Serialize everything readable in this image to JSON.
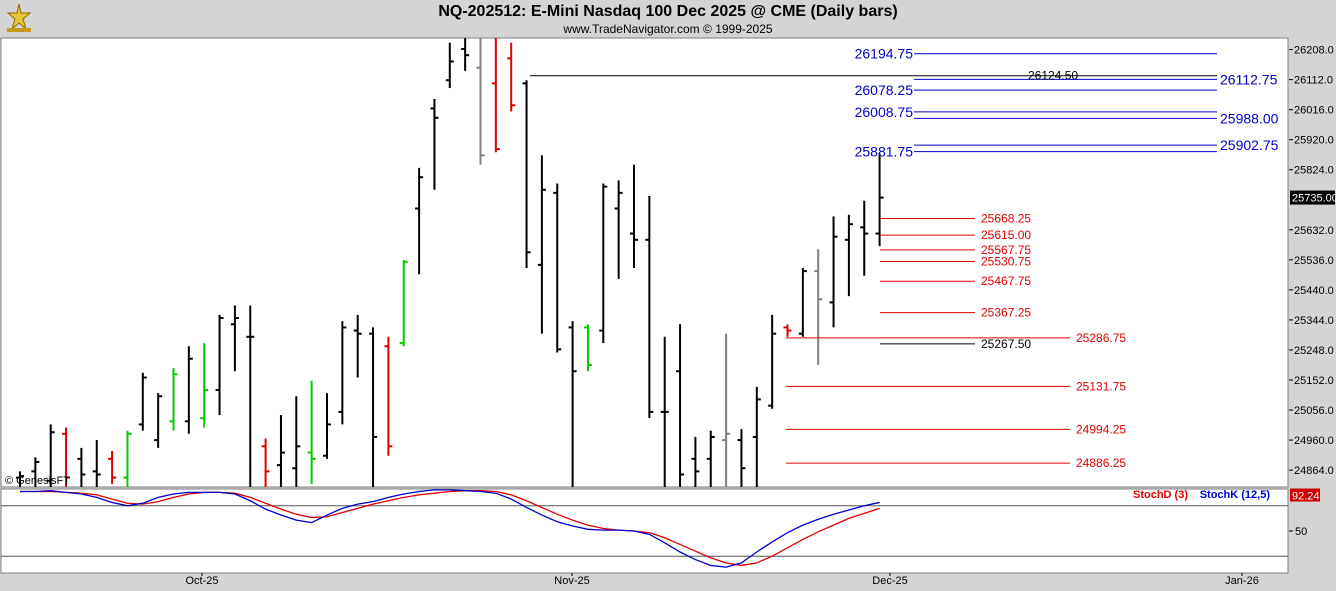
{
  "header": {
    "title": "NQ-202512:  E-Mini Nasdaq 100 Dec 2025 @ CME  (Daily bars)",
    "subtitle": "www.TradeNavigator.com © 1999-2025"
  },
  "colors": {
    "bar_up": "#000000",
    "bar_down_red": "#e00000",
    "bar_gray": "#808080",
    "bar_green": "#00cc00",
    "blue_levels": "#0000cc",
    "red_levels": "#e00000",
    "stoch_d": "#e00000",
    "stoch_k": "#0000cc"
  },
  "chart_data": [
    {
      "type": "candlestick",
      "title": "NQ-202512:  E-Mini Nasdaq 100 Dec 2025 @ CME  (Daily bars)",
      "y_ticks": [
        "26208.0",
        "26112.0",
        "26016.0",
        "25920.0",
        "25824.0",
        "25632.0",
        "25536.0",
        "25440.0",
        "25344.0",
        "25248.0",
        "25152.0",
        "25056.0",
        "24960.0",
        "24864.0"
      ],
      "last_price": "25735.00",
      "ylim": [
        24810,
        26245
      ],
      "x_ticks": [
        "Oct-25",
        "Nov-25",
        "Dec-25",
        "Jan-26"
      ],
      "series_note": "OHLC daily bars, values estimated from y-axis",
      "bars": [
        {
          "h": 24860,
          "l": 24810,
          "o": 24840,
          "c": 24845,
          "col": "k"
        },
        {
          "h": 24905,
          "l": 24810,
          "o": 24860,
          "c": 24890,
          "col": "k"
        },
        {
          "h": 25010,
          "l": 24810,
          "o": 24830,
          "c": 24985,
          "col": "k"
        },
        {
          "h": 25000,
          "l": 24810,
          "o": 24980,
          "c": 24840,
          "col": "r"
        },
        {
          "h": 24935,
          "l": 24810,
          "o": 24900,
          "c": 24850,
          "col": "k"
        },
        {
          "h": 24960,
          "l": 24810,
          "o": 24860,
          "c": 24850,
          "col": "k"
        },
        {
          "h": 24925,
          "l": 24820,
          "o": 24900,
          "c": 24840,
          "col": "r"
        },
        {
          "h": 24990,
          "l": 24810,
          "o": 24840,
          "c": 24980,
          "col": "g"
        },
        {
          "h": 25175,
          "l": 24990,
          "o": 25010,
          "c": 25160,
          "col": "k"
        },
        {
          "h": 25110,
          "l": 24935,
          "o": 24960,
          "c": 25100,
          "col": "k"
        },
        {
          "h": 25190,
          "l": 24990,
          "o": 25020,
          "c": 25170,
          "col": "g"
        },
        {
          "h": 25260,
          "l": 24980,
          "o": 25020,
          "c": 25220,
          "col": "k"
        },
        {
          "h": 25270,
          "l": 25000,
          "o": 25030,
          "c": 25120,
          "col": "g"
        },
        {
          "h": 25360,
          "l": 25040,
          "o": 25120,
          "c": 25350,
          "col": "k"
        },
        {
          "h": 25390,
          "l": 25180,
          "o": 25330,
          "c": 25350,
          "col": "k"
        },
        {
          "h": 25390,
          "l": 24810,
          "o": 25290,
          "c": 25290,
          "col": "k"
        },
        {
          "h": 24965,
          "l": 24810,
          "o": 24940,
          "c": 24860,
          "col": "r"
        },
        {
          "h": 25040,
          "l": 24810,
          "o": 24880,
          "c": 24920,
          "col": "k"
        },
        {
          "h": 25100,
          "l": 24810,
          "o": 24870,
          "c": 24940,
          "col": "k"
        },
        {
          "h": 25150,
          "l": 24820,
          "o": 24920,
          "c": 24900,
          "col": "g"
        },
        {
          "h": 25110,
          "l": 24900,
          "o": 24910,
          "c": 25010,
          "col": "k"
        },
        {
          "h": 25340,
          "l": 25010,
          "o": 25050,
          "c": 25320,
          "col": "k"
        },
        {
          "h": 25360,
          "l": 25160,
          "o": 25310,
          "c": 25300,
          "col": "k"
        },
        {
          "h": 25320,
          "l": 24810,
          "o": 25300,
          "c": 24970,
          "col": "k"
        },
        {
          "h": 25290,
          "l": 24910,
          "o": 25260,
          "c": 24940,
          "col": "r"
        },
        {
          "h": 25535,
          "l": 25260,
          "o": 25270,
          "c": 25530,
          "col": "g"
        },
        {
          "h": 25830,
          "l": 25490,
          "o": 25700,
          "c": 25800,
          "col": "k"
        },
        {
          "h": 26050,
          "l": 25760,
          "o": 26020,
          "c": 25990,
          "col": "k"
        },
        {
          "h": 26230,
          "l": 26085,
          "o": 26110,
          "c": 26170,
          "col": "k"
        },
        {
          "h": 26245,
          "l": 26140,
          "o": 26210,
          "c": 26190,
          "col": "k"
        },
        {
          "h": 26245,
          "l": 25840,
          "o": 26150,
          "c": 25870,
          "col": "gy"
        },
        {
          "h": 26245,
          "l": 25880,
          "o": 26100,
          "c": 25890,
          "col": "r"
        },
        {
          "h": 26230,
          "l": 26010,
          "o": 26180,
          "c": 26030,
          "col": "r"
        },
        {
          "h": 26110,
          "l": 25510,
          "o": 26100,
          "c": 25560,
          "col": "k"
        },
        {
          "h": 25870,
          "l": 25300,
          "o": 25520,
          "c": 25760,
          "col": "k"
        },
        {
          "h": 25780,
          "l": 25240,
          "o": 25750,
          "c": 25250,
          "col": "k"
        },
        {
          "h": 25340,
          "l": 24810,
          "o": 25320,
          "c": 25180,
          "col": "k"
        },
        {
          "h": 25330,
          "l": 25180,
          "o": 25320,
          "c": 25200,
          "col": "g"
        },
        {
          "h": 25780,
          "l": 25270,
          "o": 25310,
          "c": 25770,
          "col": "k"
        },
        {
          "h": 25790,
          "l": 25475,
          "o": 25700,
          "c": 25750,
          "col": "k"
        },
        {
          "h": 25840,
          "l": 25510,
          "o": 25620,
          "c": 25600,
          "col": "k"
        },
        {
          "h": 25740,
          "l": 25030,
          "o": 25600,
          "c": 25050,
          "col": "k"
        },
        {
          "h": 25290,
          "l": 24810,
          "o": 25050,
          "c": 25050,
          "col": "k"
        },
        {
          "h": 25330,
          "l": 24810,
          "o": 25180,
          "c": 24850,
          "col": "k"
        },
        {
          "h": 24970,
          "l": 24810,
          "o": 24900,
          "c": 24860,
          "col": "k"
        },
        {
          "h": 24990,
          "l": 24810,
          "o": 24900,
          "c": 24970,
          "col": "k"
        },
        {
          "h": 25300,
          "l": 24810,
          "o": 24960,
          "c": 24980,
          "col": "gy"
        },
        {
          "h": 24995,
          "l": 24810,
          "o": 24960,
          "c": 24870,
          "col": "k"
        },
        {
          "h": 25130,
          "l": 24810,
          "o": 24970,
          "c": 25090,
          "col": "k"
        },
        {
          "h": 25360,
          "l": 25060,
          "o": 25070,
          "c": 25300,
          "col": "k"
        },
        {
          "h": 25330,
          "l": 25290,
          "o": 25320,
          "c": 25310,
          "col": "r"
        },
        {
          "h": 25510,
          "l": 25290,
          "o": 25300,
          "c": 25500,
          "col": "k"
        },
        {
          "h": 25570,
          "l": 25200,
          "o": 25500,
          "c": 25410,
          "col": "gy"
        },
        {
          "h": 25675,
          "l": 25320,
          "o": 25400,
          "c": 25610,
          "col": "k"
        },
        {
          "h": 25680,
          "l": 25420,
          "o": 25600,
          "c": 25650,
          "col": "k"
        },
        {
          "h": 25725,
          "l": 25485,
          "o": 25640,
          "c": 25620,
          "col": "k"
        },
        {
          "h": 25875,
          "l": 25580,
          "o": 25620,
          "c": 25735,
          "col": "k"
        }
      ],
      "blue_levels_right": [
        "26112.75",
        "25988.00",
        "25902.75"
      ],
      "blue_levels_left": [
        "26194.75",
        "26078.25",
        "26008.75",
        "25881.75"
      ],
      "blue_level_values": [
        26194.75,
        26112.75,
        26078.25,
        26008.75,
        25988.0,
        25902.75,
        25881.75
      ],
      "black_levels": [
        {
          "label": "26124.50",
          "value": 26124.5
        },
        {
          "label": "25267.50",
          "value": 25267.5
        }
      ],
      "red_levels": [
        {
          "label": "25668.25",
          "value": 25668.25
        },
        {
          "label": "25615.00",
          "value": 25615.0
        },
        {
          "label": "25567.75",
          "value": 25567.75
        },
        {
          "label": "25530.75",
          "value": 25530.75
        },
        {
          "label": "25467.75",
          "value": 25467.75
        },
        {
          "label": "25367.25",
          "value": 25367.25
        },
        {
          "label": "25286.75",
          "value": 25286.75
        },
        {
          "label": "25131.75",
          "value": 25131.75
        },
        {
          "label": "24994.25",
          "value": 24994.25
        },
        {
          "label": "24886.25",
          "value": 24886.25
        }
      ],
      "copyright": "© GenesisFT"
    },
    {
      "type": "line",
      "series": [
        {
          "name": "StochD (3)",
          "color": "#e00000",
          "values": [
            97,
            97,
            97,
            96,
            95,
            93,
            88,
            83,
            82,
            85,
            90,
            94,
            96,
            96,
            95,
            90,
            83,
            76,
            70,
            66,
            67,
            72,
            77,
            82,
            86,
            90,
            93,
            95,
            97,
            98,
            98,
            97,
            93,
            86,
            78,
            70,
            63,
            57,
            53,
            51,
            50,
            48,
            42,
            34,
            26,
            18,
            12,
            9,
            12,
            20,
            30,
            40,
            49,
            57,
            65,
            71,
            77
          ]
        },
        {
          "name": "StochK (12,5)",
          "color": "#0000cc",
          "values": [
            97,
            97,
            98,
            96,
            94,
            90,
            84,
            80,
            83,
            90,
            94,
            96,
            96,
            96,
            94,
            86,
            76,
            69,
            63,
            60,
            69,
            77,
            82,
            85,
            90,
            94,
            97,
            99,
            99,
            98,
            97,
            95,
            88,
            78,
            69,
            61,
            56,
            52,
            51,
            51,
            50,
            46,
            36,
            25,
            16,
            9,
            7,
            12,
            25,
            37,
            48,
            57,
            64,
            70,
            75,
            80,
            84
          ]
        }
      ],
      "y_tick": "50",
      "last_value": "92.24",
      "legend": [
        "StochD (3)",
        "StochK (12,5)"
      ]
    }
  ]
}
